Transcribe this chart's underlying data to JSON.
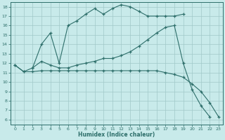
{
  "xlabel": "Humidex (Indice chaleur)",
  "xlim": [
    0,
    23
  ],
  "ylim": [
    6,
    18
  ],
  "yticks": [
    6,
    7,
    8,
    9,
    10,
    11,
    12,
    13,
    14,
    15,
    16,
    17,
    18
  ],
  "xticks": [
    0,
    1,
    2,
    3,
    4,
    5,
    6,
    7,
    8,
    9,
    10,
    11,
    12,
    13,
    14,
    15,
    16,
    17,
    18,
    19,
    20,
    21,
    22,
    23
  ],
  "bg_color": "#c8eaea",
  "grid_color": "#a0c8c8",
  "line_color": "#2d6e6a",
  "lines": [
    {
      "x": [
        2,
        3,
        4,
        5,
        6,
        7,
        8,
        9,
        10,
        11,
        12,
        13,
        14,
        15,
        16,
        17,
        18,
        19
      ],
      "y": [
        11.5,
        14.0,
        15.2,
        12.0,
        16.0,
        16.5,
        17.2,
        17.8,
        17.2,
        17.8,
        18.2,
        18.0,
        17.5,
        17.0,
        17.0,
        17.0,
        17.0,
        17.2
      ]
    },
    {
      "x": [
        0,
        1,
        2,
        3,
        4,
        5,
        6,
        7,
        8,
        9,
        10,
        11,
        12,
        13,
        14,
        15,
        16,
        17,
        18,
        19,
        20,
        21,
        22,
        23
      ],
      "y": [
        11.8,
        11.1,
        11.5,
        12.2,
        11.8,
        11.5,
        11.5,
        11.8,
        12.0,
        12.2,
        12.5,
        12.5,
        12.8,
        13.2,
        13.8,
        14.5,
        15.2,
        15.8,
        16.0,
        12.0,
        9.2,
        7.5,
        6.3,
        null
      ]
    },
    {
      "x": [
        0,
        1,
        2,
        3,
        4,
        5,
        6,
        7,
        8,
        9,
        10,
        11,
        12,
        13,
        14,
        15,
        16,
        17,
        18,
        19,
        20,
        21,
        22,
        23
      ],
      "y": [
        11.8,
        11.1,
        11.1,
        11.2,
        11.2,
        11.2,
        11.2,
        11.2,
        11.2,
        11.2,
        11.2,
        11.2,
        11.2,
        11.2,
        11.2,
        11.2,
        11.2,
        11.0,
        10.8,
        10.5,
        9.8,
        9.0,
        7.8,
        6.3
      ]
    }
  ]
}
